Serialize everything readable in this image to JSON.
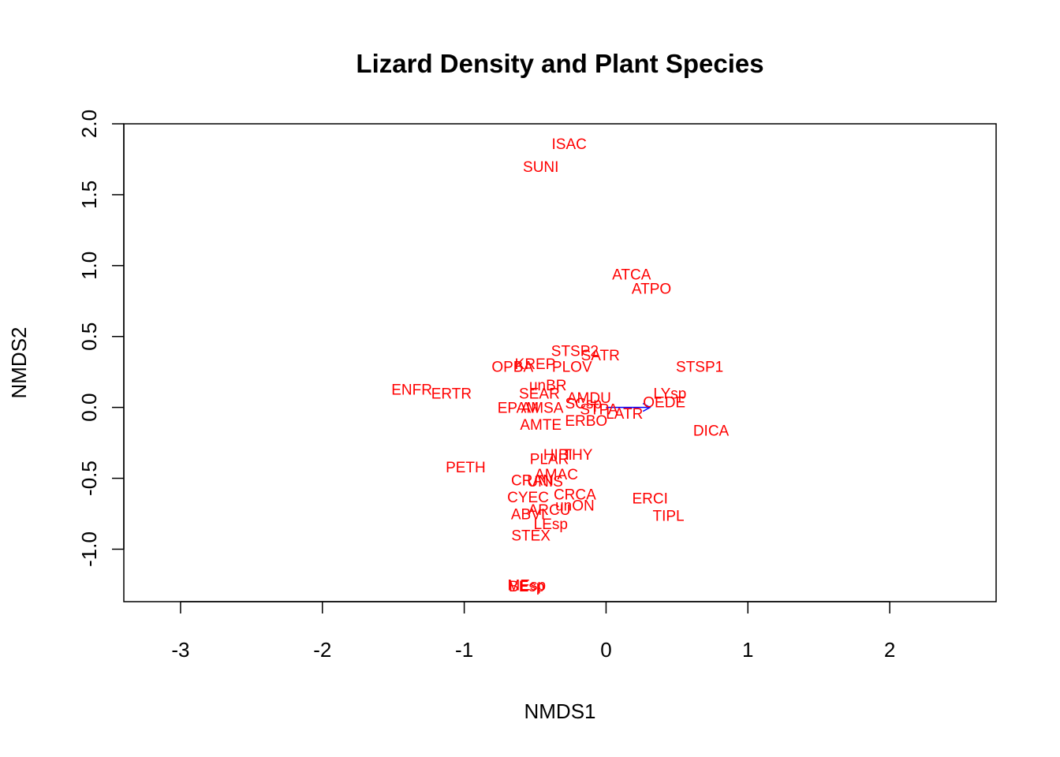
{
  "chart_data": {
    "type": "scatter",
    "title": "Lizard Density and Plant Species",
    "xlabel": "NMDS1",
    "ylabel": "NMDS2",
    "xlim": [
      -3.4,
      2.75
    ],
    "ylim": [
      -1.37,
      2.0
    ],
    "xticks": [
      -3,
      -2,
      -1,
      0,
      1,
      2
    ],
    "yticks": [
      -1.0,
      -0.5,
      0.0,
      0.5,
      1.0,
      1.5,
      2.0
    ],
    "xtick_labels": [
      "-3",
      "-2",
      "-1",
      "0",
      "1",
      "2"
    ],
    "ytick_labels": [
      "-1.0",
      "-0.5",
      "0.0",
      "0.5",
      "1.0",
      "1.5",
      "2.0"
    ],
    "label_color": "#ff0000",
    "vector_color": "#0000ff",
    "vector": {
      "x0": 0,
      "y0": 0,
      "x1": 0.31,
      "y1": 0.0
    },
    "species": [
      {
        "label": "ISAC",
        "x": -0.26,
        "y": 1.86
      },
      {
        "label": "SUNI",
        "x": -0.46,
        "y": 1.7
      },
      {
        "label": "ATCA",
        "x": 0.18,
        "y": 0.94
      },
      {
        "label": "ATPO",
        "x": 0.32,
        "y": 0.84
      },
      {
        "label": "STSP2",
        "x": -0.22,
        "y": 0.4
      },
      {
        "label": "SATR",
        "x": -0.04,
        "y": 0.37
      },
      {
        "label": "KREP",
        "x": -0.5,
        "y": 0.31
      },
      {
        "label": "OPBA",
        "x": -0.66,
        "y": 0.29
      },
      {
        "label": "PLOV",
        "x": -0.24,
        "y": 0.29
      },
      {
        "label": "STSP1",
        "x": 0.66,
        "y": 0.29
      },
      {
        "label": "unBR",
        "x": -0.41,
        "y": 0.16
      },
      {
        "label": "ENFR",
        "x": -1.37,
        "y": 0.13
      },
      {
        "label": "ERTR",
        "x": -1.09,
        "y": 0.1
      },
      {
        "label": "SEAR",
        "x": -0.47,
        "y": 0.1
      },
      {
        "label": "LYsp",
        "x": 0.45,
        "y": 0.1
      },
      {
        "label": "AMDU",
        "x": -0.12,
        "y": 0.07
      },
      {
        "label": "OEDE",
        "x": 0.41,
        "y": 0.04
      },
      {
        "label": "SCsp",
        "x": -0.16,
        "y": 0.03
      },
      {
        "label": "EPAM",
        "x": -0.62,
        "y": 0.0
      },
      {
        "label": "AMSA",
        "x": -0.45,
        "y": 0.0
      },
      {
        "label": "STPA",
        "x": -0.05,
        "y": -0.01
      },
      {
        "label": "LATR",
        "x": 0.13,
        "y": -0.04
      },
      {
        "label": "ERBO",
        "x": -0.14,
        "y": -0.09
      },
      {
        "label": "AMTE",
        "x": -0.46,
        "y": -0.12
      },
      {
        "label": "DICA",
        "x": 0.74,
        "y": -0.16
      },
      {
        "label": "HIBI",
        "x": -0.34,
        "y": -0.33
      },
      {
        "label": "THY",
        "x": -0.2,
        "y": -0.33
      },
      {
        "label": "PLAR",
        "x": -0.4,
        "y": -0.36
      },
      {
        "label": "PETH",
        "x": -0.99,
        "y": -0.42
      },
      {
        "label": "AMAC",
        "x": -0.35,
        "y": -0.47
      },
      {
        "label": "CRAN",
        "x": -0.52,
        "y": -0.51
      },
      {
        "label": "UNIS",
        "x": -0.43,
        "y": -0.52
      },
      {
        "label": "CRCA",
        "x": -0.22,
        "y": -0.61
      },
      {
        "label": "CYEC",
        "x": -0.55,
        "y": -0.63
      },
      {
        "label": "ERCI",
        "x": 0.31,
        "y": -0.64
      },
      {
        "label": "unON",
        "x": -0.22,
        "y": -0.69
      },
      {
        "label": "ARCU",
        "x": -0.4,
        "y": -0.72
      },
      {
        "label": "ABVI",
        "x": -0.55,
        "y": -0.75
      },
      {
        "label": "TIPL",
        "x": 0.44,
        "y": -0.76
      },
      {
        "label": "LEsp",
        "x": -0.39,
        "y": -0.82
      },
      {
        "label": "STEX",
        "x": -0.53,
        "y": -0.9
      },
      {
        "label": "MEsp",
        "x": -0.56,
        "y": -1.25
      },
      {
        "label": "BEsp",
        "x": -0.56,
        "y": -1.26
      }
    ]
  }
}
